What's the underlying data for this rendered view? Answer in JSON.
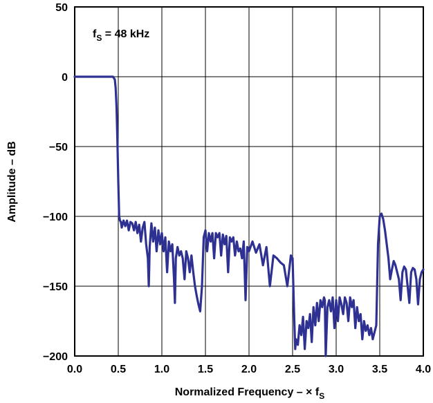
{
  "chart_data": {
    "type": "line",
    "title": "",
    "xlabel": "Normalized Frequency – × f",
    "xlabel_subscript": "S",
    "ylabel": "Amplitude – dB",
    "xlim": [
      0.0,
      4.0
    ],
    "ylim": [
      -200,
      50
    ],
    "x_ticks": [
      0.0,
      0.5,
      1.0,
      1.5,
      2.0,
      2.5,
      3.0,
      3.5,
      4.0
    ],
    "x_tick_labels": [
      "0.0",
      "0.5",
      "1.0",
      "1.5",
      "2.0",
      "2.5",
      "3.0",
      "3.5",
      "4.0"
    ],
    "y_ticks": [
      50,
      0,
      -50,
      -100,
      -150,
      -200
    ],
    "y_tick_labels": [
      "50",
      "0",
      "−50",
      "−100",
      "−150",
      "−200"
    ],
    "grid": true,
    "legend": "none",
    "annotation": {
      "prefix": "f",
      "subscript": "S",
      "text": " = 48 kHz"
    },
    "series": [
      {
        "color": "#2e3192",
        "x": [
          0.0,
          0.1,
          0.2,
          0.3,
          0.4,
          0.44,
          0.46,
          0.47,
          0.48,
          0.49,
          0.5,
          0.51,
          0.52,
          0.53,
          0.54,
          0.56,
          0.58,
          0.6,
          0.62,
          0.64,
          0.66,
          0.68,
          0.7,
          0.72,
          0.74,
          0.76,
          0.78,
          0.8,
          0.82,
          0.84,
          0.85,
          0.86,
          0.88,
          0.9,
          0.92,
          0.94,
          0.96,
          0.98,
          1.0,
          1.02,
          1.04,
          1.06,
          1.08,
          1.1,
          1.12,
          1.14,
          1.15,
          1.16,
          1.18,
          1.2,
          1.22,
          1.24,
          1.26,
          1.28,
          1.3,
          1.32,
          1.34,
          1.36,
          1.38,
          1.4,
          1.42,
          1.44,
          1.46,
          1.48,
          1.5,
          1.52,
          1.54,
          1.56,
          1.58,
          1.6,
          1.62,
          1.64,
          1.66,
          1.68,
          1.7,
          1.72,
          1.74,
          1.76,
          1.78,
          1.8,
          1.82,
          1.84,
          1.86,
          1.88,
          1.9,
          1.92,
          1.94,
          1.96,
          1.98,
          2.0,
          2.04,
          2.08,
          2.12,
          2.16,
          2.2,
          2.24,
          2.28,
          2.32,
          2.36,
          2.4,
          2.44,
          2.48,
          2.5,
          2.52,
          2.53,
          2.54,
          2.56,
          2.58,
          2.6,
          2.62,
          2.64,
          2.66,
          2.68,
          2.7,
          2.72,
          2.74,
          2.76,
          2.78,
          2.8,
          2.82,
          2.84,
          2.86,
          2.87,
          2.88,
          2.9,
          2.92,
          2.94,
          2.96,
          2.98,
          3.0,
          3.02,
          3.04,
          3.06,
          3.08,
          3.1,
          3.12,
          3.14,
          3.16,
          3.18,
          3.2,
          3.22,
          3.24,
          3.26,
          3.28,
          3.3,
          3.32,
          3.34,
          3.36,
          3.38,
          3.4,
          3.42,
          3.44,
          3.46,
          3.47,
          3.48,
          3.5,
          3.52,
          3.54,
          3.56,
          3.58,
          3.6,
          3.62,
          3.64,
          3.66,
          3.68,
          3.7,
          3.72,
          3.74,
          3.76,
          3.78,
          3.8,
          3.82,
          3.84,
          3.86,
          3.88,
          3.9,
          3.92,
          3.94,
          3.96,
          3.98,
          4.0
        ],
        "y": [
          0,
          0,
          0,
          0,
          0,
          0,
          -2,
          -8,
          -22,
          -45,
          -75,
          -100,
          -103,
          -104,
          -108,
          -103,
          -107,
          -103,
          -110,
          -104,
          -105,
          -110,
          -104,
          -112,
          -106,
          -118,
          -108,
          -104,
          -120,
          -130,
          -150,
          -122,
          -105,
          -118,
          -108,
          -125,
          -110,
          -120,
          -112,
          -125,
          -115,
          -140,
          -118,
          -125,
          -120,
          -145,
          -162,
          -130,
          -122,
          -128,
          -125,
          -130,
          -145,
          -125,
          -130,
          -140,
          -128,
          -140,
          -150,
          -157,
          -163,
          -168,
          -150,
          -115,
          -110,
          -125,
          -112,
          -118,
          -112,
          -130,
          -112,
          -115,
          -112,
          -128,
          -113,
          -120,
          -114,
          -140,
          -115,
          -118,
          -115,
          -128,
          -118,
          -125,
          -123,
          -130,
          -118,
          -160,
          -122,
          -125,
          -118,
          -126,
          -120,
          -135,
          -122,
          -150,
          -128,
          -130,
          -133,
          -135,
          -150,
          -128,
          -130,
          -175,
          -195,
          -188,
          -192,
          -178,
          -185,
          -172,
          -195,
          -175,
          -180,
          -170,
          -190,
          -165,
          -178,
          -162,
          -175,
          -160,
          -165,
          -158,
          -160,
          -200,
          -165,
          -160,
          -168,
          -158,
          -180,
          -160,
          -175,
          -158,
          -163,
          -170,
          -158,
          -162,
          -175,
          -158,
          -165,
          -160,
          -180,
          -165,
          -175,
          -170,
          -188,
          -175,
          -182,
          -178,
          -185,
          -180,
          -188,
          -183,
          -178,
          -150,
          -120,
          -100,
          -98,
          -102,
          -110,
          -120,
          -130,
          -145,
          -138,
          -132,
          -135,
          -140,
          -145,
          -160,
          -140,
          -136,
          -138,
          -150,
          -162,
          -140,
          -137,
          -138,
          -145,
          -163,
          -145,
          -140,
          -138
        ]
      }
    ]
  }
}
